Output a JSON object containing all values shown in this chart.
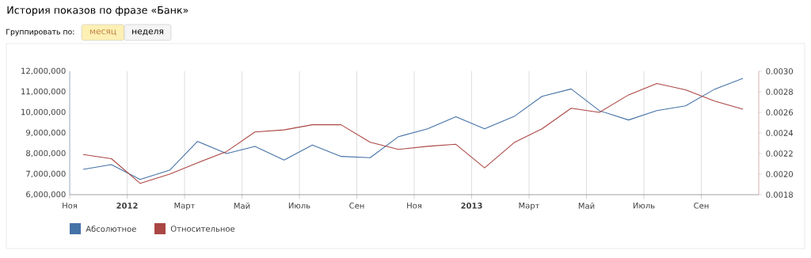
{
  "chart_data": {
    "type": "line",
    "title": "История показов по фразе «Банк»",
    "annotations": [
      "Группировать по:",
      "месяц",
      "неделя"
    ],
    "x": [
      "2011-11-15",
      "2011-12-15",
      "2012-01-15",
      "2012-02-15",
      "2012-03-15",
      "2012-04-15",
      "2012-05-15",
      "2012-06-15",
      "2012-07-15",
      "2012-08-15",
      "2012-09-15",
      "2012-10-15",
      "2012-11-15",
      "2012-12-15",
      "2013-01-15",
      "2013-02-15",
      "2013-03-15",
      "2013-04-15",
      "2013-05-15",
      "2013-06-15",
      "2013-07-15",
      "2013-08-15",
      "2013-09-15",
      "2013-10-15"
    ],
    "series": [
      {
        "name": "Абсолютное",
        "color": "#4572a7",
        "values": [
          7230000,
          7460000,
          6740000,
          7190000,
          8590000,
          8000000,
          8350000,
          7680000,
          8410000,
          7860000,
          7800000,
          8820000,
          9200000,
          9790000,
          9200000,
          9820000,
          10780000,
          11140000,
          10080000,
          9630000,
          10090000,
          10320000,
          11130000,
          11650000
        ]
      },
      {
        "name": "Относительное",
        "color": "#aa4643",
        "axis": "y2",
        "values": [
          0.00219,
          0.00215,
          0.00191,
          0.002,
          0.00211,
          0.00222,
          0.00241,
          0.00243,
          0.00248,
          0.00248,
          0.00231,
          0.00224,
          0.00227,
          0.00229,
          0.00206,
          0.00231,
          0.00244,
          0.00264,
          0.0026,
          0.00277,
          0.00288,
          0.00282,
          0.00271,
          0.00263
        ]
      }
    ],
    "xlim": [
      "2011-11-01",
      "2013-11-01"
    ],
    "xticks": [
      {
        "value": "2011-11-01",
        "label": "Ноя"
      },
      {
        "value": "2012-01-01",
        "label": "**2012**"
      },
      {
        "value": "2012-03-01",
        "label": "Март"
      },
      {
        "value": "2012-05-01",
        "label": "Май"
      },
      {
        "value": "2012-07-01",
        "label": "Июль"
      },
      {
        "value": "2012-09-01",
        "label": "Сен"
      },
      {
        "value": "2012-11-01",
        "label": "Ноя"
      },
      {
        "value": "2013-01-01",
        "label": "**2013**"
      },
      {
        "value": "2013-03-01",
        "label": "Март"
      },
      {
        "value": "2013-05-01",
        "label": "Май"
      },
      {
        "value": "2013-07-01",
        "label": "Июль"
      },
      {
        "value": "2013-09-01",
        "label": "Сен"
      }
    ],
    "ylim": [
      6000000,
      12000000
    ],
    "yticks": [
      {
        "value": 6000000,
        "label": "6,000,000"
      },
      {
        "value": 7000000,
        "label": "7,000,000"
      },
      {
        "value": 8000000,
        "label": "8,000,000"
      },
      {
        "value": 9000000,
        "label": "9,000,000"
      },
      {
        "value": 10000000,
        "label": "10,000,000"
      },
      {
        "value": 11000000,
        "label": "11,000,000"
      },
      {
        "value": 12000000,
        "label": "12,000,000"
      }
    ],
    "y2lim": [
      0.0018,
      0.003
    ],
    "y2ticks": [
      {
        "value": 0.0018,
        "label": "0.0018"
      },
      {
        "value": 0.002,
        "label": "0.0020"
      },
      {
        "value": 0.0022,
        "label": "0.0022"
      },
      {
        "value": 0.0024,
        "label": "0.0024"
      },
      {
        "value": 0.0026,
        "label": "0.0026"
      },
      {
        "value": 0.0028,
        "label": "0.0028"
      },
      {
        "value": 0.003,
        "label": "0.0030"
      }
    ],
    "grid": "x",
    "legend": "bottom left"
  }
}
